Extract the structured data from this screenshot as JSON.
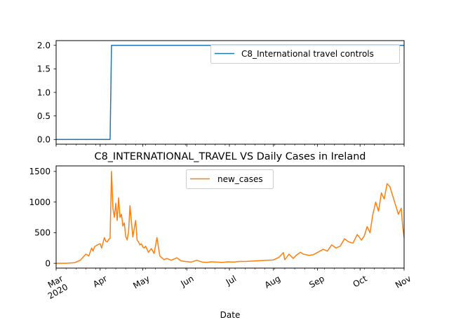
{
  "chart_data": [
    {
      "type": "line",
      "title": "",
      "xlabel": "",
      "ylabel": "",
      "ylim": [
        -0.1,
        2.1
      ],
      "yticks": [
        "0.0",
        "0.5",
        "1.0",
        "1.5",
        "2.0"
      ],
      "ytick_values": [
        0.0,
        0.5,
        1.0,
        1.5,
        2.0
      ],
      "legend_position": "upper-right",
      "grid": false,
      "series": [
        {
          "name": "C8_International travel controls",
          "color": "#1f77b4",
          "x": [
            "2020-03-01",
            "2020-04-08",
            "2020-04-09",
            "2020-11-01"
          ],
          "values": [
            0,
            0,
            2,
            2
          ]
        }
      ]
    },
    {
      "type": "line",
      "title": "C8_INTERNATIONAL_TRAVEL VS Daily Cases in Ireland",
      "xlabel": "Date",
      "ylabel": "",
      "ylim": [
        -78,
        1590
      ],
      "yticks": [
        "0",
        "500",
        "1000",
        "1500"
      ],
      "ytick_values": [
        0,
        500,
        1000,
        1500
      ],
      "xtick_dates": [
        "2020-03-01",
        "2020-04-01",
        "2020-05-01",
        "2020-06-01",
        "2020-07-01",
        "2020-08-01",
        "2020-09-01",
        "2020-10-01",
        "2020-11-01"
      ],
      "xtick_labels": [
        "Mar\n2020",
        "Apr",
        "May",
        "Jun",
        "Jul",
        "Aug",
        "Sep",
        "Oct",
        "Nov"
      ],
      "legend_position": "upper-center",
      "grid": false,
      "series": [
        {
          "name": "new_cases",
          "color": "#ff7f0e",
          "x": [
            "2020-03-01",
            "2020-03-08",
            "2020-03-14",
            "2020-03-16",
            "2020-03-18",
            "2020-03-20",
            "2020-03-22",
            "2020-03-24",
            "2020-03-26",
            "2020-03-27",
            "2020-03-28",
            "2020-03-30",
            "2020-04-01",
            "2020-04-02",
            "2020-04-04",
            "2020-04-05",
            "2020-04-06",
            "2020-04-07",
            "2020-04-08",
            "2020-04-09",
            "2020-04-10",
            "2020-04-11",
            "2020-04-12",
            "2020-04-13",
            "2020-04-14",
            "2020-04-15",
            "2020-04-16",
            "2020-04-17",
            "2020-04-18",
            "2020-04-19",
            "2020-04-20",
            "2020-04-21",
            "2020-04-22",
            "2020-04-24",
            "2020-04-26",
            "2020-04-27",
            "2020-04-28",
            "2020-04-29",
            "2020-04-30",
            "2020-05-01",
            "2020-05-02",
            "2020-05-03",
            "2020-05-05",
            "2020-05-07",
            "2020-05-09",
            "2020-05-11",
            "2020-05-13",
            "2020-05-15",
            "2020-05-16",
            "2020-05-18",
            "2020-05-21",
            "2020-05-25",
            "2020-05-28",
            "2020-05-31",
            "2020-06-04",
            "2020-06-08",
            "2020-06-12",
            "2020-06-15",
            "2020-06-18",
            "2020-06-22",
            "2020-06-26",
            "2020-06-30",
            "2020-07-04",
            "2020-07-08",
            "2020-07-12",
            "2020-07-16",
            "2020-07-20",
            "2020-07-24",
            "2020-07-28",
            "2020-08-01",
            "2020-08-05",
            "2020-08-08",
            "2020-08-09",
            "2020-08-12",
            "2020-08-15",
            "2020-08-17",
            "2020-08-20",
            "2020-08-22",
            "2020-08-26",
            "2020-08-29",
            "2020-09-02",
            "2020-09-05",
            "2020-09-08",
            "2020-09-11",
            "2020-09-14",
            "2020-09-17",
            "2020-09-20",
            "2020-09-23",
            "2020-09-26",
            "2020-09-29",
            "2020-10-02",
            "2020-10-04",
            "2020-10-06",
            "2020-10-08",
            "2020-10-10",
            "2020-10-12",
            "2020-10-14",
            "2020-10-16",
            "2020-10-18",
            "2020-10-20",
            "2020-10-22",
            "2020-10-24",
            "2020-10-26",
            "2020-10-28",
            "2020-10-30",
            "2020-10-31",
            "2020-11-01"
          ],
          "values": [
            0,
            0,
            10,
            30,
            50,
            100,
            150,
            120,
            250,
            200,
            270,
            300,
            320,
            250,
            420,
            360,
            350,
            390,
            410,
            1500,
            900,
            750,
            980,
            700,
            1070,
            750,
            800,
            610,
            660,
            440,
            380,
            520,
            940,
            430,
            700,
            380,
            350,
            300,
            320,
            270,
            250,
            280,
            180,
            240,
            160,
            420,
            120,
            80,
            60,
            80,
            50,
            90,
            40,
            30,
            20,
            50,
            20,
            15,
            25,
            20,
            15,
            25,
            20,
            30,
            30,
            35,
            40,
            45,
            50,
            55,
            100,
            175,
            60,
            150,
            80,
            130,
            180,
            150,
            130,
            140,
            190,
            230,
            200,
            300,
            250,
            280,
            400,
            350,
            330,
            470,
            380,
            450,
            600,
            500,
            800,
            1000,
            850,
            1150,
            1050,
            1300,
            1250,
            1100,
            950,
            800,
            900,
            600,
            420
          ]
        }
      ]
    }
  ]
}
